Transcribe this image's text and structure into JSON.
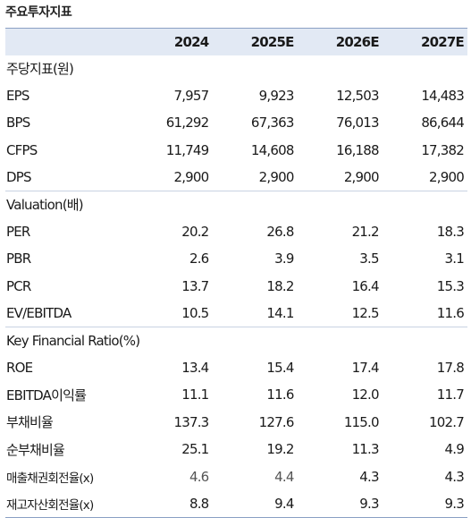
{
  "title": "주요투자지표",
  "header": {
    "label": "",
    "years": [
      "2024",
      "2025E",
      "2026E",
      "2027E"
    ]
  },
  "sections": [
    {
      "label": "주당지표(원)",
      "rows": [
        {
          "label": "EPS",
          "values": [
            "7,957",
            "9,923",
            "12,503",
            "14,483"
          ]
        },
        {
          "label": "BPS",
          "values": [
            "61,292",
            "67,363",
            "76,013",
            "86,644"
          ]
        },
        {
          "label": "CFPS",
          "values": [
            "11,749",
            "14,608",
            "16,188",
            "17,382"
          ]
        },
        {
          "label": "DPS",
          "values": [
            "2,900",
            "2,900",
            "2,900",
            "2,900"
          ]
        }
      ]
    },
    {
      "label": "Valuation(배)",
      "rows": [
        {
          "label": "PER",
          "values": [
            "20.2",
            "26.8",
            "21.2",
            "18.3"
          ]
        },
        {
          "label": "PBR",
          "values": [
            "2.6",
            "3.9",
            "3.5",
            "3.1"
          ]
        },
        {
          "label": "PCR",
          "values": [
            "13.7",
            "18.2",
            "16.4",
            "15.3"
          ]
        },
        {
          "label": "EV/EBITDA",
          "values": [
            "10.5",
            "14.1",
            "12.5",
            "11.6"
          ]
        }
      ]
    },
    {
      "label": "Key Financial Ratio(%)",
      "rows": [
        {
          "label": "ROE",
          "values": [
            "13.4",
            "15.4",
            "17.4",
            "17.8"
          ]
        },
        {
          "label": "EBITDA이익률",
          "values": [
            "11.1",
            "11.6",
            "12.0",
            "11.7"
          ]
        },
        {
          "label": "부채비율",
          "values": [
            "137.3",
            "127.6",
            "115.0",
            "102.7"
          ]
        },
        {
          "label": "순부채비율",
          "values": [
            "25.1",
            "19.2",
            "11.3",
            "4.9"
          ]
        },
        {
          "label": "매출채권회전율(x)",
          "values": [
            "4.6",
            "4.4",
            "4.3",
            "4.3"
          ]
        },
        {
          "label": "재고자산회전율(x)",
          "values": [
            "8.8",
            "9.4",
            "9.3",
            "9.3"
          ]
        }
      ]
    }
  ]
}
